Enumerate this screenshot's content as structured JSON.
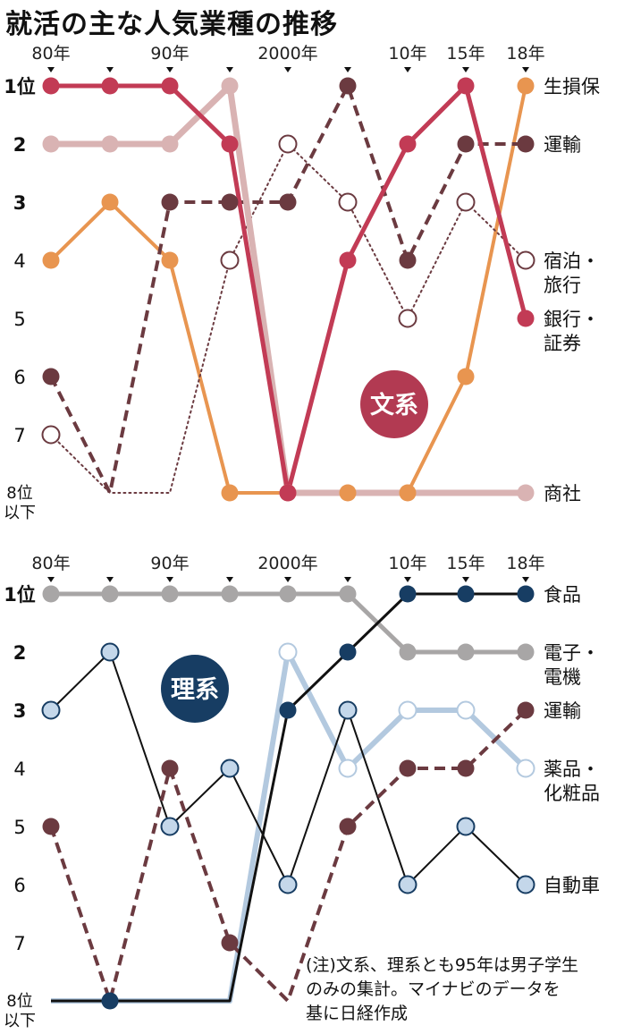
{
  "title": "就活の主な人気業種の推移",
  "note_lines": [
    "(注)文系、理系とも95年は男子学生",
    "のみの集計。マイナビのデータを",
    "基に日経作成"
  ],
  "colors": {
    "crimson": "#c23b55",
    "pink": "#d9b3b3",
    "maroon": "#6b3a40",
    "orange": "#e89550",
    "navy": "#173d63",
    "lightblue": "#b3c9df",
    "gray": "#a8a6a6",
    "black": "#111111"
  },
  "chart_data": [
    {
      "type": "line",
      "badge": "文系",
      "badge_color": "#b23a52",
      "x": [
        "80年",
        "85",
        "90年",
        "95",
        "2000年",
        "05",
        "10年",
        "15年",
        "18年"
      ],
      "x_tick_labels": [
        "80年",
        "",
        "90年",
        "",
        "2000年",
        "",
        "10年",
        "15年",
        "18年"
      ],
      "y_tick_labels": [
        "1位",
        "2",
        "3",
        "4",
        "5",
        "6",
        "7",
        "8位\n以下"
      ],
      "y_direction": "rank, 1 at top",
      "series": [
        {
          "name": "生損保",
          "style": "solid",
          "marker": "filled",
          "color": "#e89550",
          "width": 4,
          "values": [
            4,
            3,
            4,
            8,
            8,
            8,
            8,
            6,
            1
          ]
        },
        {
          "name": "運輸",
          "style": "dashed",
          "marker": "filled",
          "color": "#6b3a40",
          "width": 4,
          "values": [
            6,
            8,
            3,
            3,
            3,
            1,
            4,
            2,
            2
          ]
        },
        {
          "name": "宿泊・\n旅行",
          "style": "dotted",
          "marker": "hollow",
          "color": "#6b3a40",
          "width": 2,
          "values": [
            7,
            8,
            8,
            4,
            2,
            3,
            5,
            3,
            4
          ]
        },
        {
          "name": "商社",
          "style": "solid",
          "marker": "filled",
          "color": "#d9b3b3",
          "width": 7,
          "values": [
            2,
            2,
            2,
            1,
            8,
            8,
            8,
            8,
            8
          ]
        },
        {
          "name": "銀行・\n証券",
          "style": "solid",
          "marker": "filled",
          "color": "#c23b55",
          "width": 5,
          "values": [
            1,
            1,
            1,
            2,
            8,
            4,
            2,
            1,
            5
          ]
        }
      ]
    },
    {
      "type": "line",
      "badge": "理系",
      "badge_color": "#173d63",
      "x": [
        "80年",
        "85",
        "90年",
        "95",
        "2000年",
        "05",
        "10年",
        "15年",
        "18年"
      ],
      "x_tick_labels": [
        "80年",
        "",
        "90年",
        "",
        "2000年",
        "",
        "10年",
        "15年",
        "18年"
      ],
      "y_tick_labels": [
        "1位",
        "2",
        "3",
        "4",
        "5",
        "6",
        "7",
        "8位\n以下"
      ],
      "y_direction": "rank, 1 at top",
      "series": [
        {
          "name": "電子・\n電機",
          "style": "solid",
          "marker": "filled",
          "color": "#a8a6a6",
          "width": 5,
          "values": [
            1,
            1,
            1,
            1,
            1,
            1,
            2,
            2,
            2
          ]
        },
        {
          "name": "薬品・\n化粧品",
          "style": "solid",
          "marker": "hollow",
          "color": "#b3c9df",
          "width": 6,
          "values": [
            8,
            8,
            8,
            8,
            2,
            4,
            3,
            3,
            4
          ]
        },
        {
          "name": "自動車",
          "style": "solid",
          "marker": "hollow",
          "color": "#111111",
          "marker_fill": "#c4d7ea",
          "marker_stroke": "#173d63",
          "width": 2,
          "values": [
            3,
            2,
            5,
            4,
            6,
            3,
            6,
            5,
            6
          ]
        },
        {
          "name": "運輸",
          "style": "dashed",
          "marker": "filled",
          "color": "#6b3a40",
          "width": 4,
          "values": [
            5,
            8,
            4,
            7,
            8,
            5,
            4,
            4,
            3
          ]
        },
        {
          "name": "食品",
          "style": "solid",
          "marker": "filled",
          "color": "#111111",
          "marker_fill": "#173d63",
          "width": 3,
          "values": [
            8,
            8,
            8,
            8,
            3,
            2,
            1,
            1,
            1
          ]
        }
      ]
    }
  ]
}
